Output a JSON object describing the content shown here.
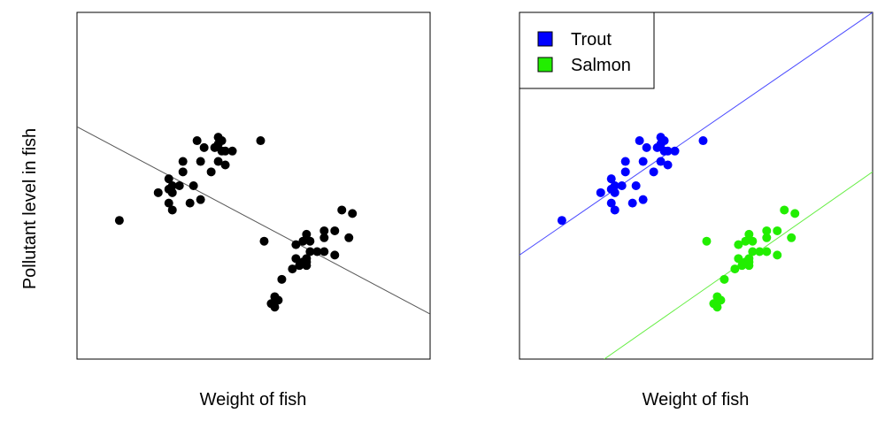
{
  "colors": {
    "black": "#000000",
    "trout": "#0000ff",
    "salmon": "#22ee00",
    "trout_line": "#4a4aff",
    "salmon_line": "#66ee44",
    "overall_line": "#555555"
  },
  "chart_data": [
    {
      "type": "scatter",
      "title": "",
      "xlabel": "Weight of fish",
      "ylabel": "Pollutant level in fish",
      "xlim": [
        0,
        100
      ],
      "ylim": [
        0,
        100
      ],
      "grid": false,
      "ticks": false,
      "series": [
        {
          "color": "#000000",
          "points": [
            [
              12,
              40
            ],
            [
              23,
              48
            ],
            [
              26,
              49
            ],
            [
              27,
              43
            ],
            [
              30,
              54
            ],
            [
              27,
              50
            ],
            [
              29,
              50
            ],
            [
              33,
              50
            ],
            [
              32,
              45
            ],
            [
              35,
              46
            ],
            [
              38,
              54
            ],
            [
              39,
              61
            ],
            [
              36,
              61
            ],
            [
              42,
              56
            ],
            [
              40,
              62
            ],
            [
              41,
              60
            ],
            [
              40,
              57
            ],
            [
              42,
              60
            ],
            [
              34,
              63
            ],
            [
              35,
              57
            ],
            [
              44,
              60
            ],
            [
              26,
              45
            ],
            [
              27,
              48
            ],
            [
              26,
              52
            ],
            [
              40,
              64
            ],
            [
              41,
              63
            ],
            [
              30,
              57
            ],
            [
              52,
              63
            ],
            [
              58,
              23
            ],
            [
              63,
              27
            ],
            [
              55,
              16
            ],
            [
              56,
              18
            ],
            [
              56,
              15
            ],
            [
              57,
              17
            ],
            [
              53,
              34
            ],
            [
              61,
              26
            ],
            [
              64,
              34
            ],
            [
              62,
              29
            ],
            [
              62,
              33
            ],
            [
              64,
              28
            ],
            [
              65,
              27
            ],
            [
              65,
              28
            ],
            [
              65,
              29
            ],
            [
              66,
              31
            ],
            [
              68,
              31
            ],
            [
              70,
              35
            ],
            [
              70,
              31
            ],
            [
              66,
              34
            ],
            [
              70,
              37
            ],
            [
              73,
              37
            ],
            [
              77,
              35
            ],
            [
              78,
              42
            ],
            [
              75,
              43
            ],
            [
              65,
              36
            ],
            [
              73,
              30
            ]
          ],
          "trend": {
            "x": [
              0,
              100
            ],
            "y": [
              67,
              13
            ]
          }
        }
      ]
    },
    {
      "type": "scatter",
      "title": "",
      "xlabel": "Weight of fish",
      "ylabel": "",
      "xlim": [
        0,
        100
      ],
      "ylim": [
        0,
        100
      ],
      "grid": false,
      "ticks": false,
      "legend": {
        "position": "top-left",
        "entries": [
          {
            "label": "Trout",
            "color": "#0000ff"
          },
          {
            "label": "Salmon",
            "color": "#22ee00"
          }
        ]
      },
      "series": [
        {
          "name": "Trout",
          "color": "#0000ff",
          "points": [
            [
              12,
              40
            ],
            [
              23,
              48
            ],
            [
              26,
              49
            ],
            [
              27,
              43
            ],
            [
              30,
              54
            ],
            [
              27,
              50
            ],
            [
              29,
              50
            ],
            [
              33,
              50
            ],
            [
              32,
              45
            ],
            [
              35,
              46
            ],
            [
              38,
              54
            ],
            [
              39,
              61
            ],
            [
              36,
              61
            ],
            [
              42,
              56
            ],
            [
              40,
              62
            ],
            [
              41,
              60
            ],
            [
              40,
              57
            ],
            [
              42,
              60
            ],
            [
              34,
              63
            ],
            [
              35,
              57
            ],
            [
              44,
              60
            ],
            [
              26,
              45
            ],
            [
              27,
              48
            ],
            [
              26,
              52
            ],
            [
              40,
              64
            ],
            [
              41,
              63
            ],
            [
              30,
              57
            ],
            [
              52,
              63
            ]
          ],
          "trend": {
            "x": [
              0,
              100
            ],
            "y": [
              30,
              100
            ]
          }
        },
        {
          "name": "Salmon",
          "color": "#22ee00",
          "points": [
            [
              58,
              23
            ],
            [
              63,
              27
            ],
            [
              55,
              16
            ],
            [
              56,
              18
            ],
            [
              56,
              15
            ],
            [
              57,
              17
            ],
            [
              53,
              34
            ],
            [
              61,
              26
            ],
            [
              64,
              34
            ],
            [
              62,
              29
            ],
            [
              62,
              33
            ],
            [
              64,
              28
            ],
            [
              65,
              27
            ],
            [
              65,
              28
            ],
            [
              65,
              29
            ],
            [
              66,
              31
            ],
            [
              68,
              31
            ],
            [
              70,
              35
            ],
            [
              70,
              31
            ],
            [
              66,
              34
            ],
            [
              70,
              37
            ],
            [
              73,
              37
            ],
            [
              77,
              35
            ],
            [
              78,
              42
            ],
            [
              75,
              43
            ],
            [
              65,
              36
            ],
            [
              73,
              30
            ]
          ],
          "trend": {
            "x": [
              24,
              100
            ],
            "y": [
              0,
              54
            ]
          }
        }
      ]
    }
  ]
}
